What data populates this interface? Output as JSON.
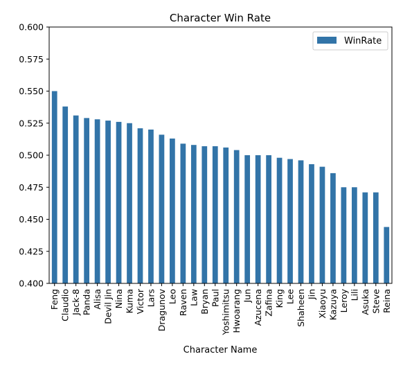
{
  "chart_data": {
    "type": "bar",
    "title": "Character Win Rate",
    "xlabel": "Character Name",
    "ylabel": "",
    "ylim": [
      0.4,
      0.6
    ],
    "yticks": [
      "0.400",
      "0.425",
      "0.450",
      "0.475",
      "0.500",
      "0.525",
      "0.550",
      "0.575",
      "0.600"
    ],
    "legend_position": "top-right",
    "grid": false,
    "bar_color": "#3274a8",
    "categories": [
      "Feng",
      "Claudio",
      "Jack-8",
      "Panda",
      "Alisa",
      "Devil Jin",
      "Nina",
      "Kuma",
      "Victor",
      "Lars",
      "Dragunov",
      "Leo",
      "Raven",
      "Law",
      "Bryan",
      "Paul",
      "Yoshimitsu",
      "Hwoarang",
      "Jun",
      "Azucena",
      "Zafina",
      "King",
      "Lee",
      "Shaheen",
      "Jin",
      "Xiaoyu",
      "Kazuya",
      "Leroy",
      "Lili",
      "Asuka",
      "Steve",
      "Reina"
    ],
    "series": [
      {
        "name": "WinRate",
        "values": [
          0.55,
          0.538,
          0.531,
          0.529,
          0.528,
          0.527,
          0.526,
          0.525,
          0.521,
          0.52,
          0.516,
          0.513,
          0.509,
          0.508,
          0.507,
          0.507,
          0.506,
          0.504,
          0.5,
          0.5,
          0.5,
          0.498,
          0.497,
          0.496,
          0.493,
          0.491,
          0.486,
          0.475,
          0.475,
          0.471,
          0.471,
          0.444
        ]
      }
    ]
  }
}
